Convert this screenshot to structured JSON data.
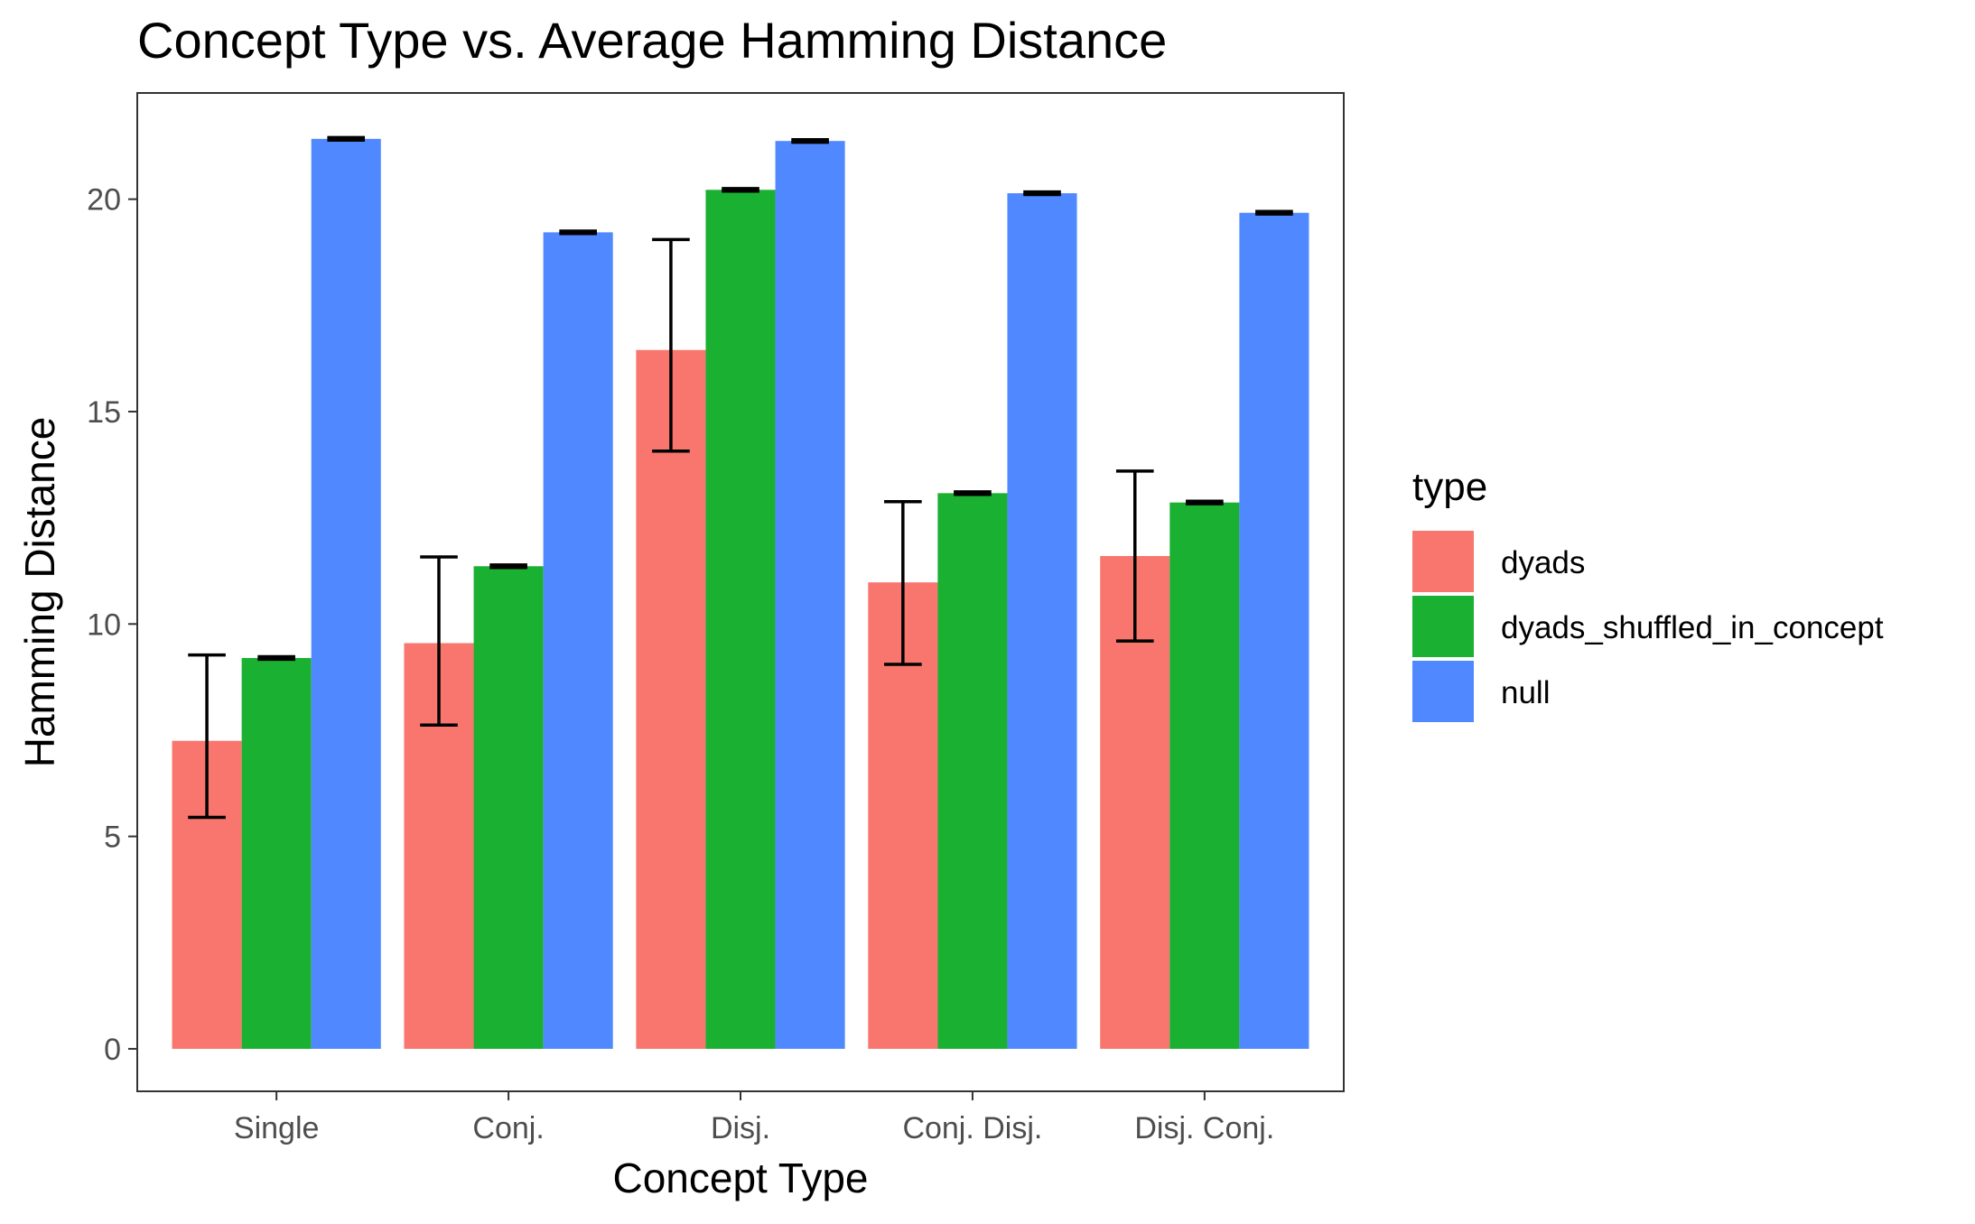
{
  "chart_data": {
    "type": "bar",
    "title": "Concept Type vs. Average Hamming Distance",
    "xlabel": "Concept Type",
    "ylabel": "Hamming Distance",
    "categories": [
      "Single",
      "Conj.",
      "Disj.",
      "Conj. Disj.",
      "Disj. Conj."
    ],
    "ylim": [
      -1,
      22.5
    ],
    "yticks": [
      0,
      5,
      10,
      15,
      20
    ],
    "grid": false,
    "legend": {
      "title": "type",
      "placement": "right"
    },
    "series": [
      {
        "name": "dyads",
        "color": "#F8766D",
        "values": [
          7.25,
          9.55,
          16.45,
          10.98,
          11.6
        ],
        "error_low": [
          5.45,
          7.62,
          14.07,
          9.05,
          9.6
        ],
        "error_high": [
          9.27,
          11.58,
          19.05,
          12.88,
          13.6
        ]
      },
      {
        "name": "dyads_shuffled_in_concept",
        "color": "#1AB031",
        "values": [
          9.2,
          11.36,
          20.22,
          13.08,
          12.86
        ],
        "error_low": [
          9.17,
          11.33,
          20.19,
          13.05,
          12.83
        ],
        "error_high": [
          9.23,
          11.39,
          20.25,
          13.11,
          12.89
        ]
      },
      {
        "name": "null",
        "color": "#5089FF",
        "values": [
          21.42,
          19.22,
          21.37,
          20.14,
          19.68
        ],
        "error_low": [
          21.39,
          19.19,
          21.34,
          20.11,
          19.65
        ],
        "error_high": [
          21.45,
          19.25,
          21.4,
          20.17,
          19.71
        ]
      }
    ]
  }
}
